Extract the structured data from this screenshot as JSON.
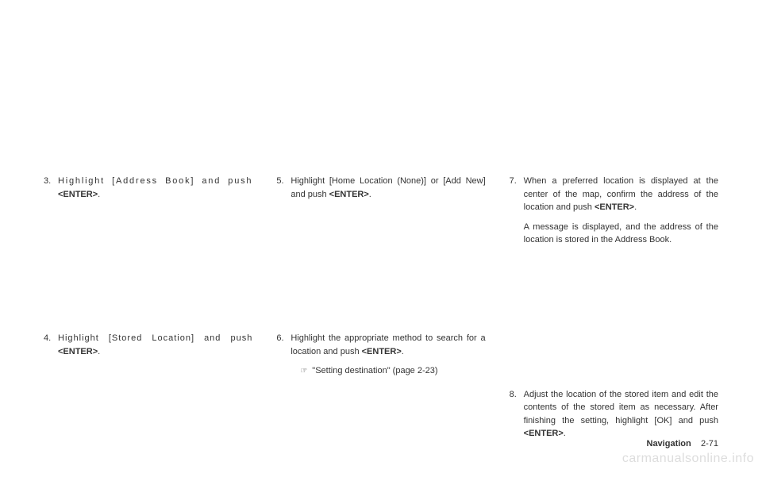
{
  "column1": {
    "item3": {
      "number": "3.",
      "text_before": "Highlight [Address Book] and push ",
      "bold": "<ENTER>",
      "text_after": "."
    },
    "item4": {
      "number": "4.",
      "text_before": "Highlight [Stored Location] and push ",
      "bold": "<ENTER>",
      "text_after": "."
    }
  },
  "column2": {
    "item5": {
      "number": "5.",
      "text_before": "Highlight [Home Location (None)] or [Add New] and push ",
      "bold": "<ENTER>",
      "text_after": "."
    },
    "item6": {
      "number": "6.",
      "text_before": "Highlight the appropriate method to search for a location and push ",
      "bold": "<ENTER>",
      "text_after": ".",
      "ref_icon": "☞",
      "ref_text": "\"Setting destination\" (page 2-23)"
    }
  },
  "column3": {
    "item7": {
      "number": "7.",
      "para1_before": "When a preferred location is displayed at the center of the map, confirm the address of the location and push ",
      "para1_bold": "<ENTER>",
      "para1_after": ".",
      "para2": "A message is displayed, and the address of the location is stored in the Address Book."
    },
    "item8": {
      "number": "8.",
      "text_before": "Adjust the location of the stored item and edit the contents of the stored item as necessary. After finishing the setting, highlight [OK] and push ",
      "bold": "<ENTER>",
      "text_after": "."
    }
  },
  "footer": {
    "nav_label": "Navigation",
    "page_num": "2-71"
  },
  "watermark": "carmanualsonline.info"
}
